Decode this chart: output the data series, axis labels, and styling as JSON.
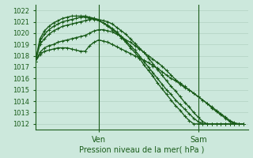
{
  "xlabel": "Pression niveau de la mer( hPa )",
  "bg_color": "#cce8dc",
  "grid_color": "#aaccbb",
  "line_color": "#1a5c1a",
  "ylim": [
    1011.5,
    1022.5
  ],
  "xlim": [
    0,
    47
  ],
  "ven_x": 14,
  "sam_x": 36,
  "series": [
    [
      1017.5,
      1018.1,
      1018.4,
      1018.5,
      1018.6,
      1018.7,
      1018.7,
      1018.7,
      1018.6,
      1018.5,
      1018.4,
      1018.4,
      1018.9,
      1019.2,
      1019.4,
      1019.3,
      1019.2,
      1019.0,
      1018.8,
      1018.6,
      1018.4,
      1018.2,
      1018.0,
      1017.8,
      1017.6,
      1017.4,
      1017.1,
      1016.9,
      1016.6,
      1016.3,
      1016.0,
      1015.8,
      1015.5,
      1015.2,
      1015.0,
      1014.7,
      1014.4,
      1014.1,
      1013.8,
      1013.5,
      1013.2,
      1012.9,
      1012.6,
      1012.3,
      1012.1,
      1012.0,
      1012.0
    ],
    [
      1017.5,
      1018.3,
      1018.7,
      1018.9,
      1019.0,
      1019.2,
      1019.3,
      1019.4,
      1019.5,
      1019.6,
      1019.7,
      1019.8,
      1020.0,
      1020.2,
      1020.3,
      1020.3,
      1020.2,
      1020.1,
      1019.9,
      1019.7,
      1019.4,
      1019.2,
      1018.9,
      1018.6,
      1018.3,
      1018.0,
      1017.7,
      1017.4,
      1017.1,
      1016.7,
      1016.3,
      1015.9,
      1015.6,
      1015.3,
      1015.0,
      1014.7,
      1014.4,
      1014.1,
      1013.8,
      1013.4,
      1013.1,
      1012.8,
      1012.5,
      1012.2,
      1012.0,
      1012.0,
      1012.0
    ],
    [
      1017.5,
      1019.0,
      1019.5,
      1019.9,
      1020.2,
      1020.4,
      1020.6,
      1020.7,
      1020.8,
      1020.9,
      1021.0,
      1021.1,
      1021.2,
      1021.3,
      1021.2,
      1021.1,
      1021.0,
      1020.8,
      1020.5,
      1020.2,
      1019.9,
      1019.5,
      1019.1,
      1018.7,
      1018.3,
      1017.8,
      1017.3,
      1016.8,
      1016.3,
      1015.8,
      1015.3,
      1014.9,
      1014.4,
      1013.9,
      1013.5,
      1013.0,
      1012.6,
      1012.2,
      1012.0,
      1012.0,
      1012.0,
      1012.0,
      1012.0,
      1012.0,
      1012.0,
      1012.0,
      1012.0
    ],
    [
      1017.5,
      1019.3,
      1019.9,
      1020.3,
      1020.6,
      1020.8,
      1021.0,
      1021.1,
      1021.2,
      1021.3,
      1021.4,
      1021.4,
      1021.3,
      1021.2,
      1021.1,
      1020.9,
      1020.7,
      1020.4,
      1020.1,
      1019.7,
      1019.3,
      1018.9,
      1018.5,
      1018.0,
      1017.5,
      1017.0,
      1016.5,
      1016.0,
      1015.5,
      1015.0,
      1014.6,
      1014.1,
      1013.7,
      1013.3,
      1012.9,
      1012.5,
      1012.2,
      1012.0,
      1012.0,
      1012.0,
      1012.0,
      1012.0,
      1012.0,
      1012.0,
      1012.0,
      1012.0,
      1012.0
    ],
    [
      1017.5,
      1019.5,
      1020.2,
      1020.6,
      1020.9,
      1021.1,
      1021.3,
      1021.4,
      1021.5,
      1021.5,
      1021.5,
      1021.5,
      1021.4,
      1021.3,
      1021.1,
      1020.9,
      1020.6,
      1020.3,
      1020.0,
      1019.6,
      1019.2,
      1018.7,
      1018.3,
      1017.8,
      1017.2,
      1016.7,
      1016.2,
      1015.6,
      1015.1,
      1014.6,
      1014.1,
      1013.6,
      1013.2,
      1012.7,
      1012.3,
      1012.0,
      1012.0,
      1012.0,
      1012.0,
      1012.0,
      1012.0,
      1012.0,
      1012.0,
      1012.0,
      1012.0,
      1012.0,
      1012.0
    ]
  ],
  "yticks": [
    1012,
    1013,
    1014,
    1015,
    1016,
    1017,
    1018,
    1019,
    1020,
    1021,
    1022
  ],
  "marker": "+",
  "marker_size": 3.5,
  "line_width": 1.0,
  "tick_fontsize": 6,
  "xlabel_fontsize": 7,
  "xtick_fontsize": 7
}
